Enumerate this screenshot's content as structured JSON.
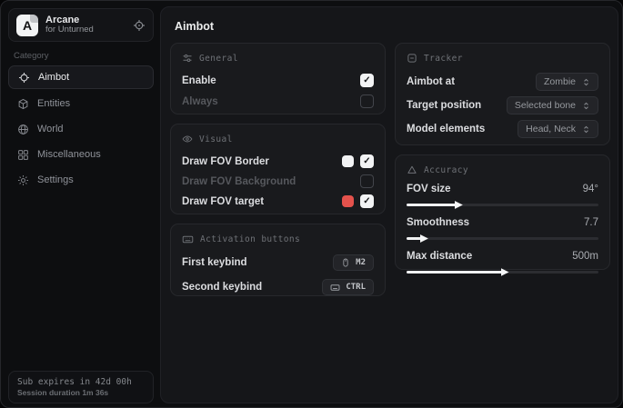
{
  "colors": {
    "swatch_fov_border": "#f2f3f4",
    "swatch_fov_target": "#e4524c"
  },
  "glyphs": {
    "check": "✓"
  },
  "sidebar": {
    "brand": {
      "logo_letter": "A",
      "title": "Arcane",
      "subtitle": "for Unturned"
    },
    "category_label": "Category",
    "items": [
      {
        "label": "Aimbot",
        "icon": "crosshair-icon",
        "active": true
      },
      {
        "label": "Entities",
        "icon": "entities-icon",
        "active": false
      },
      {
        "label": "World",
        "icon": "globe-icon",
        "active": false
      },
      {
        "label": "Miscellaneous",
        "icon": "grid-icon",
        "active": false
      },
      {
        "label": "Settings",
        "icon": "gear-icon",
        "active": false
      }
    ],
    "footer": {
      "line1": "Sub expires in 42d 00h",
      "line2": "Session duration 1m 36s"
    }
  },
  "main": {
    "title": "Aimbot",
    "general": {
      "header": "General",
      "rows": [
        {
          "label": "Enable",
          "checked": true
        },
        {
          "label": "Always",
          "checked": false
        }
      ]
    },
    "visual": {
      "header": "Visual",
      "rows": [
        {
          "label": "Draw FOV Border",
          "swatch": "#f2f3f4",
          "checked": true
        },
        {
          "label": "Draw FOV Background",
          "checked": false
        },
        {
          "label": "Draw FOV target",
          "swatch": "#e4524c",
          "checked": true
        }
      ]
    },
    "activation": {
      "header": "Activation buttons",
      "rows": [
        {
          "label": "First keybind",
          "key": "M2",
          "icon": "mouse-icon"
        },
        {
          "label": "Second keybind",
          "key": "CTRL",
          "icon": "keyboard-icon"
        }
      ]
    },
    "tracker": {
      "header": "Tracker",
      "rows": [
        {
          "label": "Aimbot at",
          "value": "Zombie"
        },
        {
          "label": "Target position",
          "value": "Selected bone"
        },
        {
          "label": "Model elements",
          "value": "Head, Neck"
        }
      ]
    },
    "accuracy": {
      "header": "Accuracy",
      "rows": [
        {
          "label": "FOV size",
          "value": "94°",
          "percent": 26
        },
        {
          "label": "Smoothness",
          "value": "7.7",
          "percent": 8
        },
        {
          "label": "Max distance",
          "value": "500m",
          "percent": 50
        }
      ]
    }
  }
}
